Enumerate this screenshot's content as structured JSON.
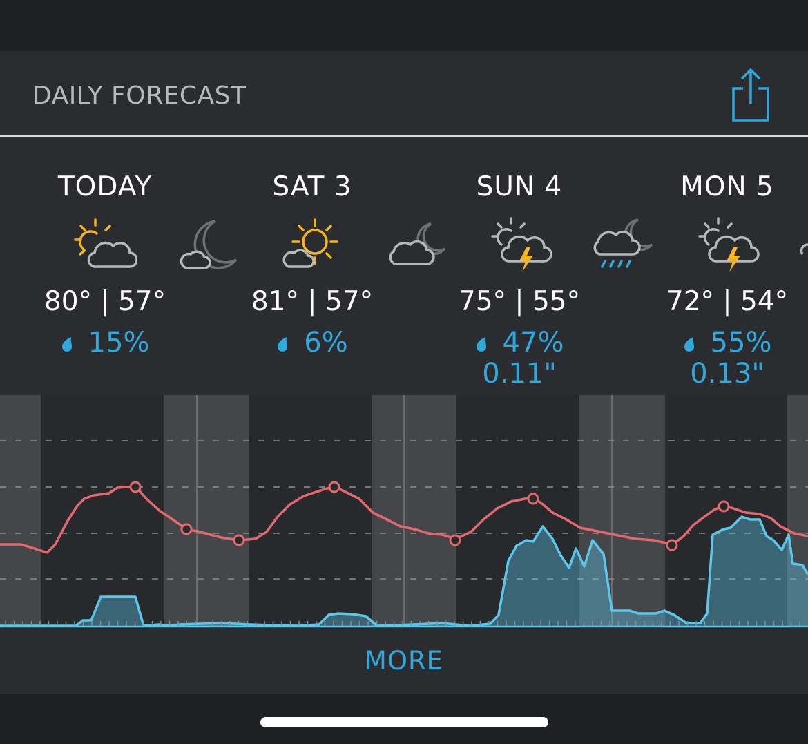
{
  "header": {
    "title": "DAILY FORECAST"
  },
  "days": [
    {
      "label": "TODAY",
      "high": "80°",
      "low": "57°",
      "precip_chance": "15%",
      "precip_amount": "",
      "day_icon": "partly-sunny-icon",
      "night_icon": "cloudy-night-icon"
    },
    {
      "label": "SAT 3",
      "high": "81°",
      "low": "57°",
      "precip_chance": "6%",
      "precip_amount": "",
      "day_icon": "partly-sunny-icon",
      "night_icon": "partly-cloudy-night-icon"
    },
    {
      "label": "SUN 4",
      "high": "75°",
      "low": "55°",
      "precip_chance": "47%",
      "precip_amount": "0.11\"",
      "day_icon": "thunderstorm-icon",
      "night_icon": "rainy-night-icon"
    },
    {
      "label": "MON 5",
      "high": "72°",
      "low": "54°",
      "precip_chance": "55%",
      "precip_amount": "0.13\"",
      "day_icon": "thunderstorm-icon",
      "night_icon": ""
    }
  ],
  "more": {
    "label": "MORE"
  },
  "colors": {
    "accent": "#2fa8dc",
    "temperature_line": "#e26a6e",
    "precip_line": "#5bc8ea",
    "sun": "#f6b51e",
    "cloud": "#b7b8bb"
  }
}
